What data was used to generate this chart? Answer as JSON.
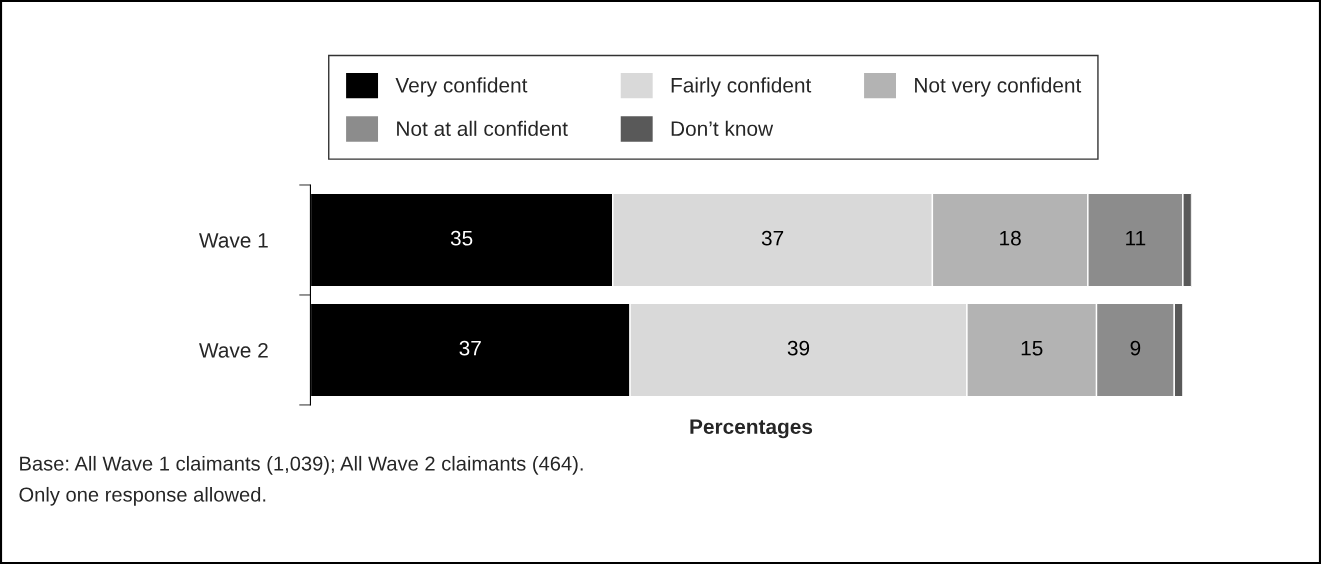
{
  "chart_data": {
    "type": "bar",
    "orientation": "horizontal",
    "stacked": true,
    "categories": [
      "Wave 1",
      "Wave 2"
    ],
    "series": [
      {
        "name": "Very confident",
        "color": "#000000",
        "values": [
          35,
          37
        ],
        "value_labels": [
          "35",
          "37"
        ]
      },
      {
        "name": "Fairly confident",
        "color": "#d9d9d9",
        "values": [
          37,
          39
        ],
        "value_labels": [
          "37",
          "39"
        ]
      },
      {
        "name": "Not very confident",
        "color": "#b3b3b3",
        "values": [
          18,
          15
        ],
        "value_labels": [
          "18",
          "15"
        ]
      },
      {
        "name": "Not at all confident",
        "color": "#8c8c8c",
        "values": [
          11,
          9
        ],
        "value_labels": [
          "11",
          "9"
        ]
      },
      {
        "name": "Don’t know",
        "color": "#595959",
        "values": [
          1,
          1
        ],
        "value_labels": [
          null,
          null
        ]
      }
    ],
    "xlabel": "Percentages",
    "legend": "top",
    "grid": false,
    "annotations": [
      "Base: All Wave 1 claimants (1,039); All Wave 2 claimants (464).",
      "Only one response allowed."
    ]
  }
}
